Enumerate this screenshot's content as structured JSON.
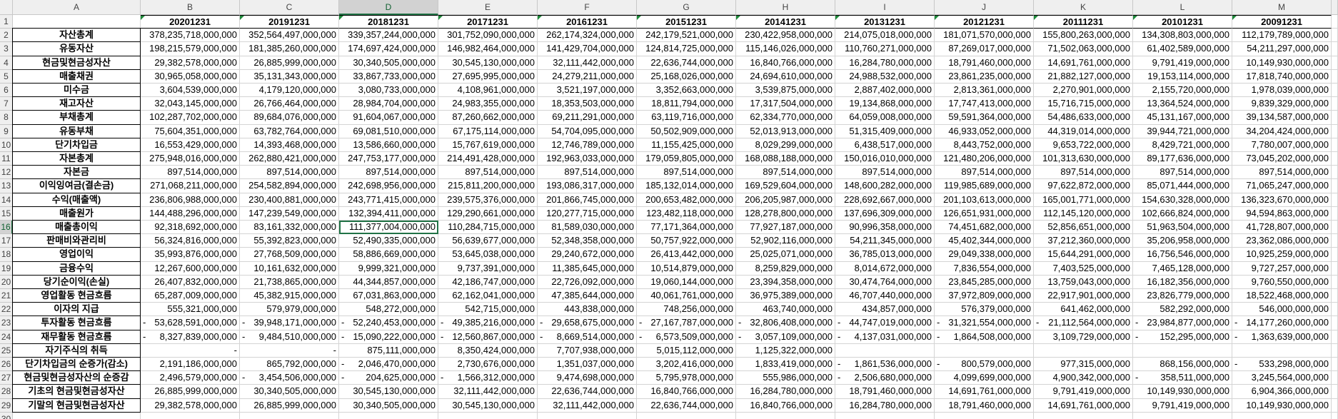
{
  "columns": [
    "A",
    "B",
    "C",
    "D",
    "E",
    "F",
    "G",
    "H",
    "I",
    "J",
    "K",
    "L",
    "M"
  ],
  "row_numbers": [
    1,
    2,
    3,
    4,
    5,
    6,
    7,
    8,
    9,
    10,
    11,
    12,
    13,
    14,
    15,
    16,
    17,
    18,
    19,
    20,
    21,
    22,
    23,
    24,
    25,
    26,
    27,
    28,
    29,
    30
  ],
  "header_row": [
    "20201231",
    "20191231",
    "20181231",
    "20171231",
    "20161231",
    "20151231",
    "20141231",
    "20131231",
    "20121231",
    "20111231",
    "20101231",
    "20091231"
  ],
  "rows": [
    {
      "label": "자산총계",
      "cells": [
        "378,235,718,000,000",
        "352,564,497,000,000",
        "339,357,244,000,000",
        "301,752,090,000,000",
        "262,174,324,000,000",
        "242,179,521,000,000",
        "230,422,958,000,000",
        "214,075,018,000,000",
        "181,071,570,000,000",
        "155,800,263,000,000",
        "134,308,803,000,000",
        "112,179,789,000,000"
      ]
    },
    {
      "label": "유동자산",
      "cells": [
        "198,215,579,000,000",
        "181,385,260,000,000",
        "174,697,424,000,000",
        "146,982,464,000,000",
        "141,429,704,000,000",
        "124,814,725,000,000",
        "115,146,026,000,000",
        "110,760,271,000,000",
        "87,269,017,000,000",
        "71,502,063,000,000",
        "61,402,589,000,000",
        "54,211,297,000,000"
      ]
    },
    {
      "label": "현금및현금성자산",
      "cells": [
        "29,382,578,000,000",
        "26,885,999,000,000",
        "30,340,505,000,000",
        "30,545,130,000,000",
        "32,111,442,000,000",
        "22,636,744,000,000",
        "16,840,766,000,000",
        "16,284,780,000,000",
        "18,791,460,000,000",
        "14,691,761,000,000",
        "9,791,419,000,000",
        "10,149,930,000,000"
      ]
    },
    {
      "label": "매출채권",
      "cells": [
        "30,965,058,000,000",
        "35,131,343,000,000",
        "33,867,733,000,000",
        "27,695,995,000,000",
        "24,279,211,000,000",
        "25,168,026,000,000",
        "24,694,610,000,000",
        "24,988,532,000,000",
        "23,861,235,000,000",
        "21,882,127,000,000",
        "19,153,114,000,000",
        "17,818,740,000,000"
      ]
    },
    {
      "label": "미수금",
      "cells": [
        "3,604,539,000,000",
        "4,179,120,000,000",
        "3,080,733,000,000",
        "4,108,961,000,000",
        "3,521,197,000,000",
        "3,352,663,000,000",
        "3,539,875,000,000",
        "2,887,402,000,000",
        "2,813,361,000,000",
        "2,270,901,000,000",
        "2,155,720,000,000",
        "1,978,039,000,000"
      ]
    },
    {
      "label": "재고자산",
      "cells": [
        "32,043,145,000,000",
        "26,766,464,000,000",
        "28,984,704,000,000",
        "24,983,355,000,000",
        "18,353,503,000,000",
        "18,811,794,000,000",
        "17,317,504,000,000",
        "19,134,868,000,000",
        "17,747,413,000,000",
        "15,716,715,000,000",
        "13,364,524,000,000",
        "9,839,329,000,000"
      ]
    },
    {
      "label": "부채총계",
      "cells": [
        "102,287,702,000,000",
        "89,684,076,000,000",
        "91,604,067,000,000",
        "87,260,662,000,000",
        "69,211,291,000,000",
        "63,119,716,000,000",
        "62,334,770,000,000",
        "64,059,008,000,000",
        "59,591,364,000,000",
        "54,486,633,000,000",
        "45,131,167,000,000",
        "39,134,587,000,000"
      ]
    },
    {
      "label": "유동부채",
      "cells": [
        "75,604,351,000,000",
        "63,782,764,000,000",
        "69,081,510,000,000",
        "67,175,114,000,000",
        "54,704,095,000,000",
        "50,502,909,000,000",
        "52,013,913,000,000",
        "51,315,409,000,000",
        "46,933,052,000,000",
        "44,319,014,000,000",
        "39,944,721,000,000",
        "34,204,424,000,000"
      ]
    },
    {
      "label": "단기차입금",
      "cells": [
        "16,553,429,000,000",
        "14,393,468,000,000",
        "13,586,660,000,000",
        "15,767,619,000,000",
        "12,746,789,000,000",
        "11,155,425,000,000",
        "8,029,299,000,000",
        "6,438,517,000,000",
        "8,443,752,000,000",
        "9,653,722,000,000",
        "8,429,721,000,000",
        "7,780,007,000,000"
      ]
    },
    {
      "label": "자본총계",
      "cells": [
        "275,948,016,000,000",
        "262,880,421,000,000",
        "247,753,177,000,000",
        "214,491,428,000,000",
        "192,963,033,000,000",
        "179,059,805,000,000",
        "168,088,188,000,000",
        "150,016,010,000,000",
        "121,480,206,000,000",
        "101,313,630,000,000",
        "89,177,636,000,000",
        "73,045,202,000,000"
      ]
    },
    {
      "label": "자본금",
      "cells": [
        "897,514,000,000",
        "897,514,000,000",
        "897,514,000,000",
        "897,514,000,000",
        "897,514,000,000",
        "897,514,000,000",
        "897,514,000,000",
        "897,514,000,000",
        "897,514,000,000",
        "897,514,000,000",
        "897,514,000,000",
        "897,514,000,000"
      ]
    },
    {
      "label": "이익잉여금(결손금)",
      "cells": [
        "271,068,211,000,000",
        "254,582,894,000,000",
        "242,698,956,000,000",
        "215,811,200,000,000",
        "193,086,317,000,000",
        "185,132,014,000,000",
        "169,529,604,000,000",
        "148,600,282,000,000",
        "119,985,689,000,000",
        "97,622,872,000,000",
        "85,071,444,000,000",
        "71,065,247,000,000"
      ]
    },
    {
      "label": "수익(매출액)",
      "cells": [
        "236,806,988,000,000",
        "230,400,881,000,000",
        "243,771,415,000,000",
        "239,575,376,000,000",
        "201,866,745,000,000",
        "200,653,482,000,000",
        "206,205,987,000,000",
        "228,692,667,000,000",
        "201,103,613,000,000",
        "165,001,771,000,000",
        "154,630,328,000,000",
        "136,323,670,000,000"
      ]
    },
    {
      "label": "매출원가",
      "cells": [
        "144,488,296,000,000",
        "147,239,549,000,000",
        "132,394,411,000,000",
        "129,290,661,000,000",
        "120,277,715,000,000",
        "123,482,118,000,000",
        "128,278,800,000,000",
        "137,696,309,000,000",
        "126,651,931,000,000",
        "112,145,120,000,000",
        "102,666,824,000,000",
        "94,594,863,000,000"
      ]
    },
    {
      "label": "매출총이익",
      "cells": [
        "92,318,692,000,000",
        "83,161,332,000,000",
        "111,377,004,000,000",
        "110,284,715,000,000",
        "81,589,030,000,000",
        "77,171,364,000,000",
        "77,927,187,000,000",
        "90,996,358,000,000",
        "74,451,682,000,000",
        "52,856,651,000,000",
        "51,963,504,000,000",
        "41,728,807,000,000"
      ]
    },
    {
      "label": "판매비와관리비",
      "cells": [
        "56,324,816,000,000",
        "55,392,823,000,000",
        "52,490,335,000,000",
        "56,639,677,000,000",
        "52,348,358,000,000",
        "50,757,922,000,000",
        "52,902,116,000,000",
        "54,211,345,000,000",
        "45,402,344,000,000",
        "37,212,360,000,000",
        "35,206,958,000,000",
        "23,362,086,000,000"
      ]
    },
    {
      "label": "영업이익",
      "cells": [
        "35,993,876,000,000",
        "27,768,509,000,000",
        "58,886,669,000,000",
        "53,645,038,000,000",
        "29,240,672,000,000",
        "26,413,442,000,000",
        "25,025,071,000,000",
        "36,785,013,000,000",
        "29,049,338,000,000",
        "15,644,291,000,000",
        "16,756,546,000,000",
        "10,925,259,000,000"
      ]
    },
    {
      "label": "금융수익",
      "cells": [
        "12,267,600,000,000",
        "10,161,632,000,000",
        "9,999,321,000,000",
        "9,737,391,000,000",
        "11,385,645,000,000",
        "10,514,879,000,000",
        "8,259,829,000,000",
        "8,014,672,000,000",
        "7,836,554,000,000",
        "7,403,525,000,000",
        "7,465,128,000,000",
        "9,727,257,000,000"
      ]
    },
    {
      "label": "당기순이익(손실)",
      "cells": [
        "26,407,832,000,000",
        "21,738,865,000,000",
        "44,344,857,000,000",
        "42,186,747,000,000",
        "22,726,092,000,000",
        "19,060,144,000,000",
        "23,394,358,000,000",
        "30,474,764,000,000",
        "23,845,285,000,000",
        "13,759,043,000,000",
        "16,182,356,000,000",
        "9,760,550,000,000"
      ]
    },
    {
      "label": "영업활동 현금흐름",
      "cells": [
        "65,287,009,000,000",
        "45,382,915,000,000",
        "67,031,863,000,000",
        "62,162,041,000,000",
        "47,385,644,000,000",
        "40,061,761,000,000",
        "36,975,389,000,000",
        "46,707,440,000,000",
        "37,972,809,000,000",
        "22,917,901,000,000",
        "23,826,779,000,000",
        "18,522,468,000,000"
      ]
    },
    {
      "label": "이자의 지급",
      "cells": [
        "555,321,000,000",
        "579,979,000,000",
        "548,272,000,000",
        "542,715,000,000",
        "443,838,000,000",
        "748,256,000,000",
        "463,740,000,000",
        "434,857,000,000",
        "576,379,000,000",
        "641,462,000,000",
        "582,292,000,000",
        "546,000,000,000"
      ]
    },
    {
      "label": "투자활동 현금흐름",
      "cells": [
        [
          "-",
          "53,628,591,000,000"
        ],
        [
          "-",
          "39,948,171,000,000"
        ],
        [
          "-",
          "52,240,453,000,000"
        ],
        [
          "-",
          "49,385,216,000,000"
        ],
        [
          "-",
          "29,658,675,000,000"
        ],
        [
          "-",
          "27,167,787,000,000"
        ],
        [
          "-",
          "32,806,408,000,000"
        ],
        [
          "-",
          "44,747,019,000,000"
        ],
        [
          "-",
          "31,321,554,000,000"
        ],
        [
          "-",
          "21,112,564,000,000"
        ],
        [
          "-",
          "23,984,877,000,000"
        ],
        [
          "-",
          "14,177,260,000,000"
        ]
      ]
    },
    {
      "label": "재무활동 현금흐름",
      "cells": [
        [
          "-",
          "8,327,839,000,000"
        ],
        [
          "-",
          "9,484,510,000,000"
        ],
        [
          "-",
          "15,090,222,000,000"
        ],
        [
          "-",
          "12,560,867,000,000"
        ],
        [
          "-",
          "8,669,514,000,000"
        ],
        [
          "-",
          "6,573,509,000,000"
        ],
        [
          "-",
          "3,057,109,000,000"
        ],
        [
          "-",
          "4,137,031,000,000"
        ],
        [
          "-",
          "1,864,508,000,000"
        ],
        "3,109,729,000,000",
        [
          "-",
          "152,295,000,000"
        ],
        [
          "-",
          "1,363,639,000,000"
        ]
      ]
    },
    {
      "label": "자기주식의 취득",
      "cells": [
        "-",
        "-",
        "875,111,000,000",
        "8,350,424,000,000",
        "7,707,938,000,000",
        "5,015,112,000,000",
        "1,125,322,000,000",
        null,
        null,
        null,
        null,
        null
      ]
    },
    {
      "label": "단기차입금의 순증가(감소)",
      "cells": [
        "2,191,186,000,000",
        "865,792,000,000",
        [
          "-",
          "2,046,470,000,000"
        ],
        "2,730,676,000,000",
        "1,351,037,000,000",
        "3,202,416,000,000",
        "1,833,419,000,000",
        [
          "-",
          "1,861,536,000,000"
        ],
        [
          "-",
          "800,579,000,000"
        ],
        "977,315,000,000",
        "868,156,000,000",
        [
          "-",
          "533,298,000,000"
        ]
      ]
    },
    {
      "label": "현금및현금성자산의 순증감",
      "cells": [
        "2,496,579,000,000",
        [
          "-",
          "3,454,506,000,000"
        ],
        [
          "-",
          "204,625,000,000"
        ],
        [
          "-",
          "1,566,312,000,000"
        ],
        "9,474,698,000,000",
        "5,795,978,000,000",
        "555,986,000,000",
        [
          "-",
          "2,506,680,000,000"
        ],
        "4,099,699,000,000",
        "4,900,342,000,000",
        [
          "-",
          "358,511,000,000"
        ],
        "3,245,564,000,000"
      ]
    },
    {
      "label": "기초의 현금및현금성자산",
      "cells": [
        "26,885,999,000,000",
        "30,340,505,000,000",
        "30,545,130,000,000",
        "32,111,442,000,000",
        "22,636,744,000,000",
        "16,840,766,000,000",
        "16,284,780,000,000",
        "18,791,460,000,000",
        "14,691,761,000,000",
        "9,791,419,000,000",
        "10,149,930,000,000",
        "6,904,366,000,000"
      ]
    },
    {
      "label": "기말의 현금및현금성자산",
      "cells": [
        "29,382,578,000,000",
        "26,885,999,000,000",
        "30,340,505,000,000",
        "30,545,130,000,000",
        "32,111,442,000,000",
        "22,636,744,000,000",
        "16,840,766,000,000",
        "16,284,780,000,000",
        "18,791,460,000,000",
        "14,691,761,000,000",
        "9,791,419,000,000",
        "10,149,930,000,000"
      ]
    }
  ]
}
